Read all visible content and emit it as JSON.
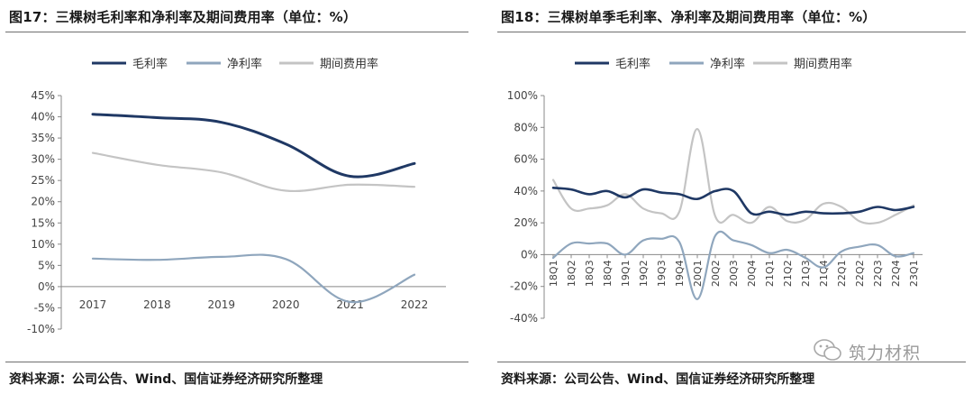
{
  "charts": [
    {
      "title": "图17：三棵树毛利率和净利率及期间费用率（单位：%）",
      "source": "资料来源：公司公告、Wind、国信证券经济研究所整理"
    },
    {
      "title": "图18：三棵树单季毛利率、净利率及期间费用率（单位：%）",
      "source": "资料来源：公司公告、Wind、国信证券经济研究所整理"
    }
  ],
  "watermark": "筑力材积",
  "chart_data": [
    {
      "type": "line",
      "title": "图17：三棵树毛利率和净利率及期间费用率（单位：%）",
      "xlabel": "",
      "ylabel": "",
      "categories": [
        "2017",
        "2018",
        "2019",
        "2020",
        "2021",
        "2022"
      ],
      "y_ticks": [
        "45%",
        "40%",
        "35%",
        "30%",
        "25%",
        "20%",
        "15%",
        "10%",
        "5%",
        "0%",
        "-5%",
        "-10%"
      ],
      "ylim": [
        -10,
        45
      ],
      "grid": false,
      "legend_position": "top",
      "series": [
        {
          "name": "毛利率",
          "color": "#1f3864",
          "values": [
            40.6,
            39.8,
            38.7,
            33.6,
            26.0,
            29.0
          ]
        },
        {
          "name": "净利率",
          "color": "#8fa6bd",
          "values": [
            6.6,
            6.3,
            7.0,
            6.5,
            -3.6,
            2.8
          ]
        },
        {
          "name": "期间费用率",
          "color": "#c4c4c4",
          "values": [
            31.5,
            28.7,
            26.9,
            22.6,
            24.0,
            23.5
          ]
        }
      ]
    },
    {
      "type": "line",
      "title": "图18：三棵树单季毛利率、净利率及期间费用率（单位：%）",
      "xlabel": "",
      "ylabel": "",
      "categories": [
        "18Q1",
        "18Q2",
        "18Q3",
        "18Q4",
        "19Q1",
        "19Q2",
        "19Q3",
        "19Q4",
        "20Q1",
        "20Q2",
        "20Q3",
        "20Q4",
        "21Q1",
        "21Q2",
        "21Q3",
        "21Q4",
        "22Q1",
        "22Q2",
        "22Q3",
        "22Q4",
        "23Q1"
      ],
      "y_ticks": [
        "100%",
        "80%",
        "60%",
        "40%",
        "20%",
        "0%",
        "-20%",
        "-40%"
      ],
      "ylim": [
        -40,
        100
      ],
      "grid": false,
      "legend_position": "top",
      "series": [
        {
          "name": "毛利率",
          "color": "#1f3864",
          "values": [
            42,
            41,
            38,
            40,
            36,
            41,
            39,
            38,
            35,
            40,
            40,
            26,
            27,
            25,
            27,
            26,
            26,
            27,
            30,
            28,
            30
          ]
        },
        {
          "name": "净利率",
          "color": "#8fa6bd",
          "values": [
            -2,
            7,
            7,
            7,
            0,
            9,
            10,
            8,
            -28,
            12,
            9,
            6,
            1,
            3,
            -2,
            -8,
            2,
            5,
            6,
            -1,
            1
          ]
        },
        {
          "name": "期间费用率",
          "color": "#c4c4c4",
          "values": [
            47,
            29,
            29,
            31,
            38,
            29,
            26,
            27,
            79,
            24,
            25,
            20,
            30,
            21,
            22,
            32,
            30,
            21,
            20,
            25,
            31
          ]
        }
      ]
    }
  ]
}
